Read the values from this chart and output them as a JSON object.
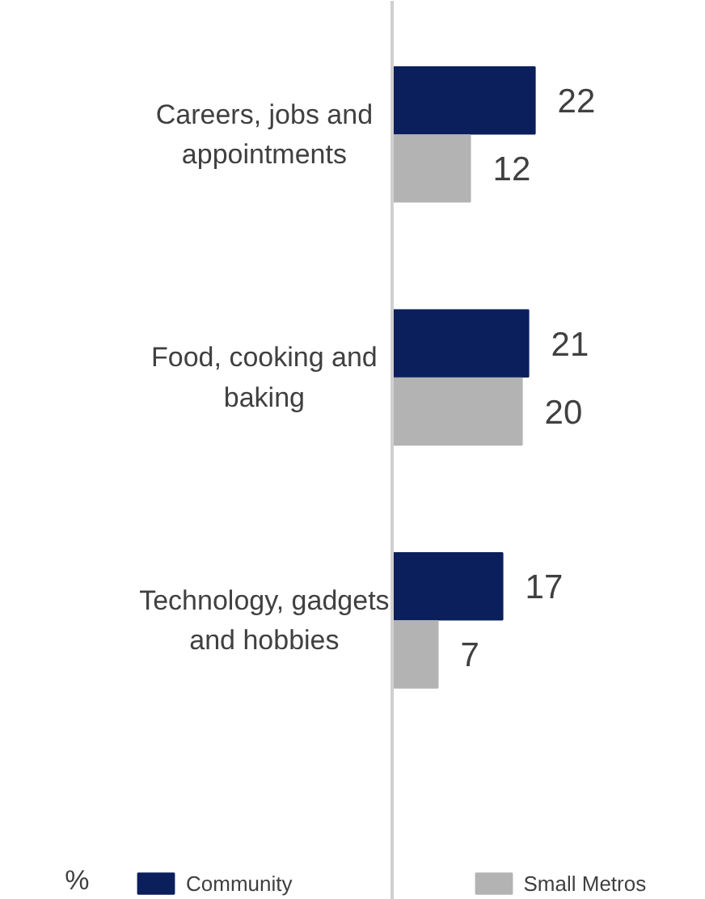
{
  "chart_data": {
    "type": "bar",
    "orientation": "horizontal",
    "categories": [
      "Careers, jobs and appointments",
      "Food, cooking and baking",
      "Technology, gadgets and hobbies"
    ],
    "series": [
      {
        "name": "Community",
        "color": "#0b1f5c",
        "values": [
          22,
          21,
          17
        ]
      },
      {
        "name": "Small Metros",
        "color": "#b3b3b3",
        "values": [
          12,
          20,
          7
        ]
      }
    ],
    "data_labels": true,
    "legend": "bottom",
    "grid": false,
    "annotations": [
      "%"
    ]
  }
}
